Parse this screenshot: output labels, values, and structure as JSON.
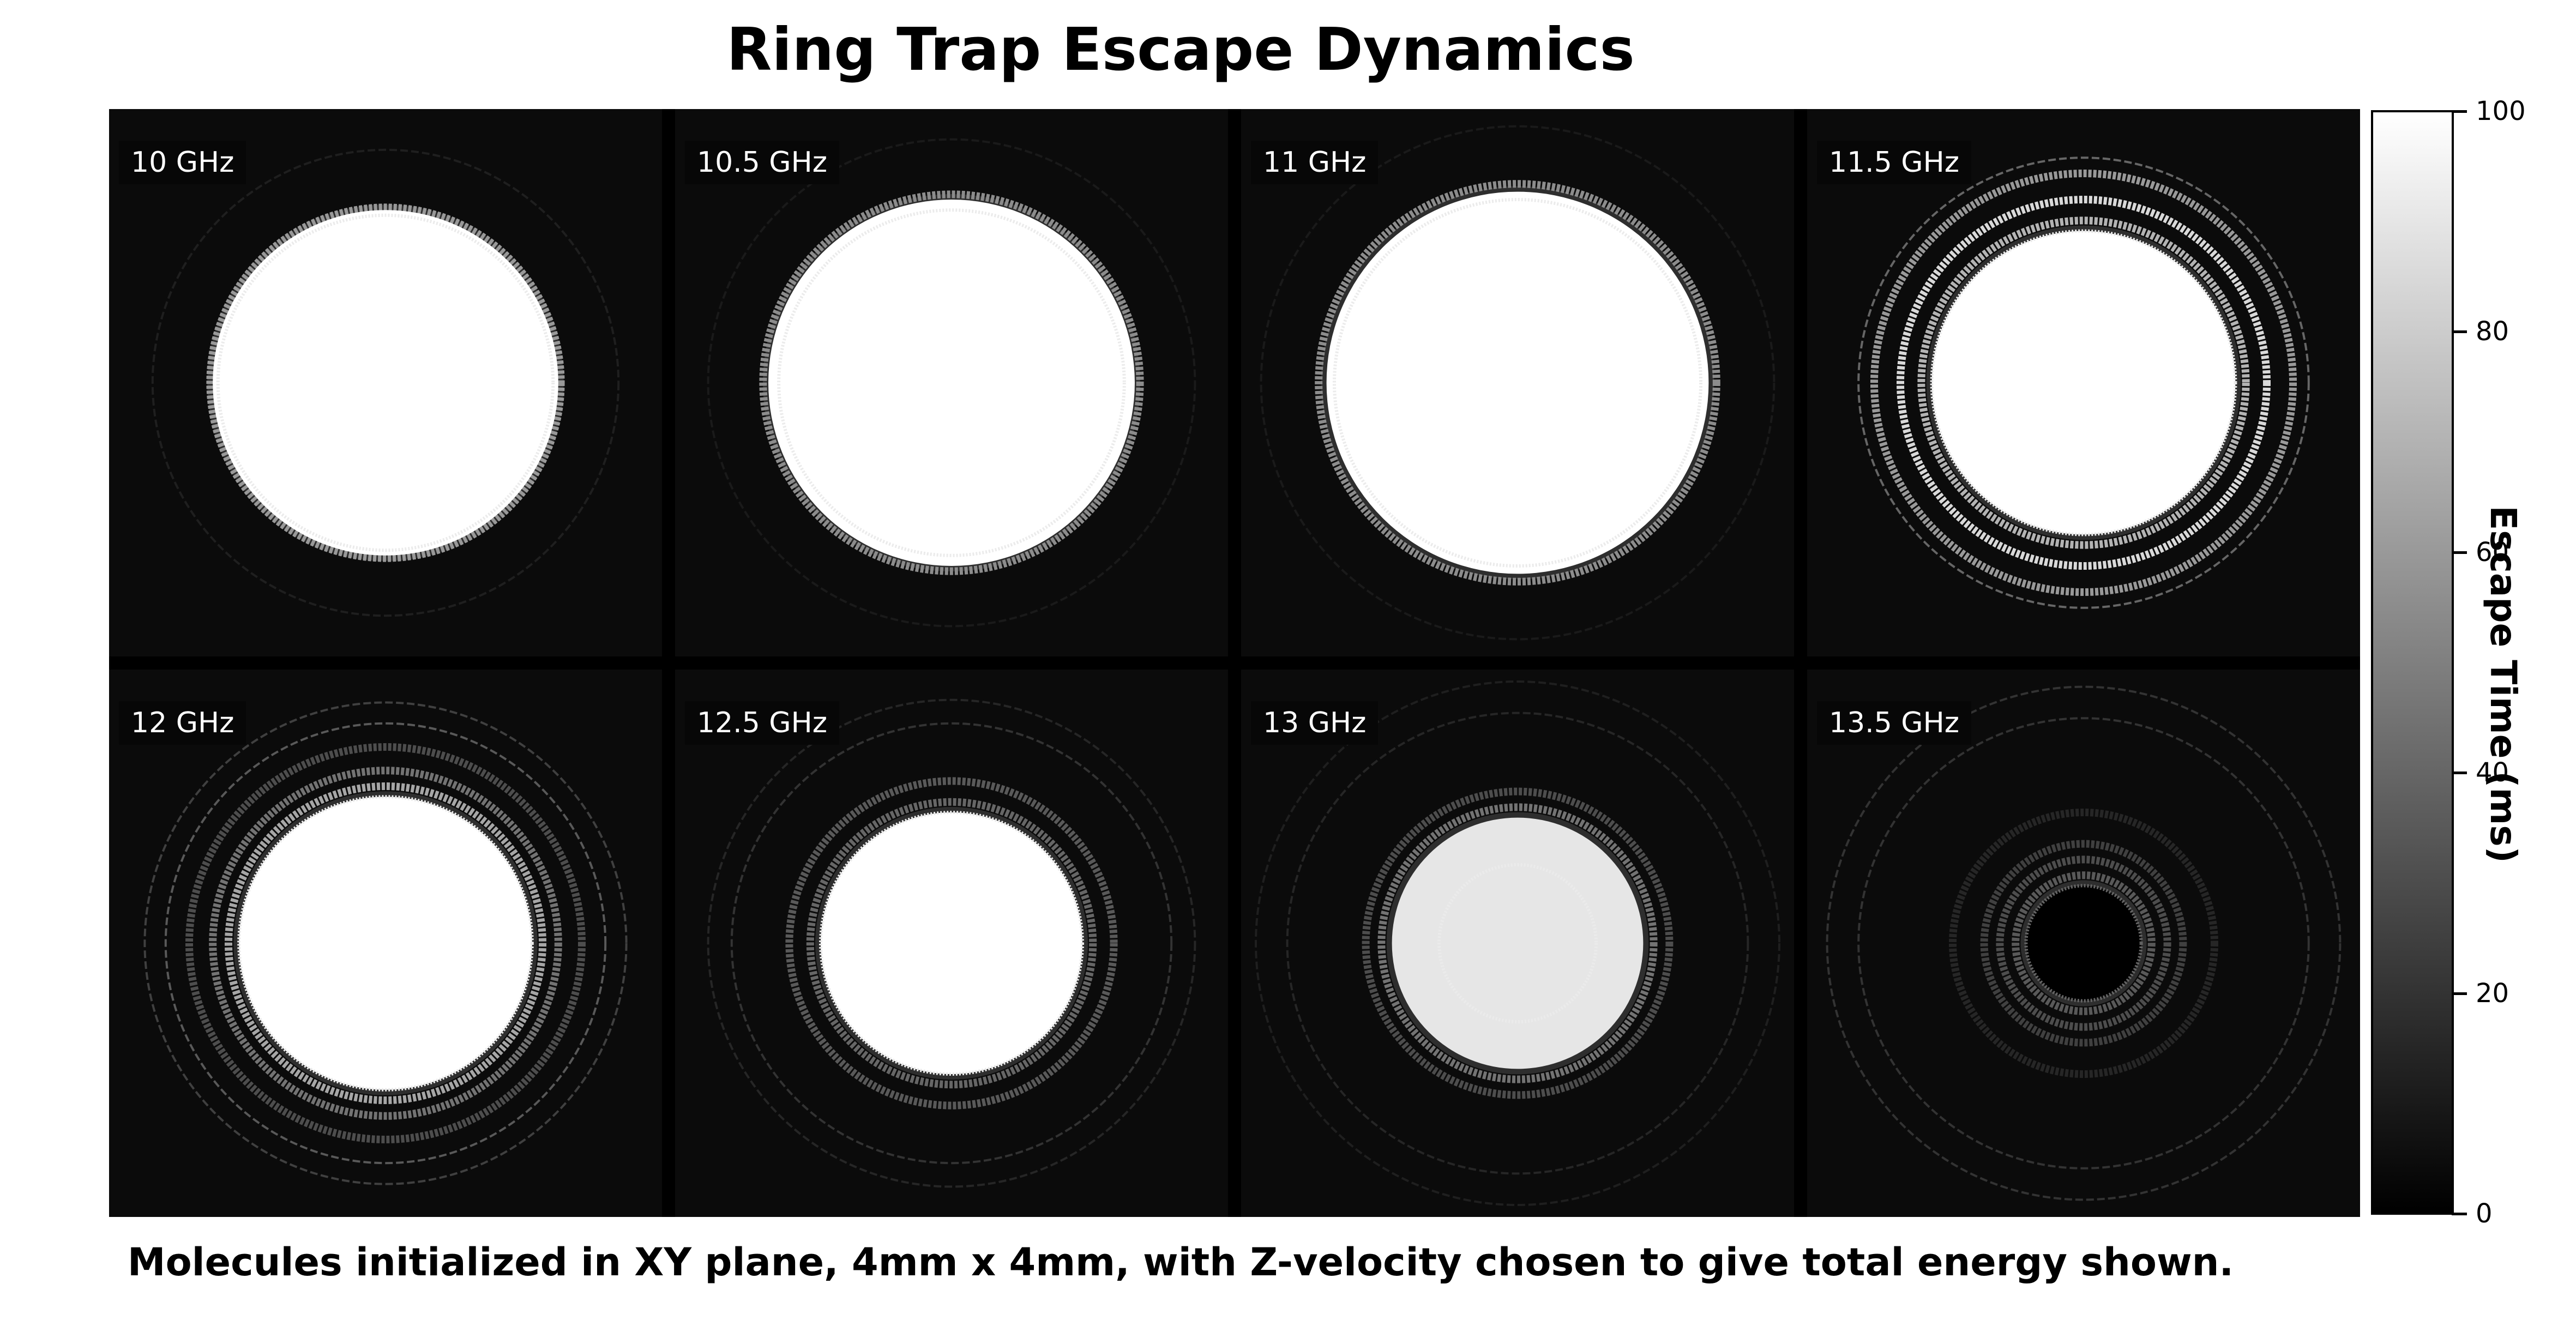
{
  "chart_data": {
    "type": "heatmap",
    "title": "Ring Trap Escape Dynamics",
    "caption": "Molecules initialized in XY plane, 4mm x 4mm, with Z-velocity chosen to give total energy shown.",
    "grid": {
      "rows": 2,
      "cols": 4
    },
    "panels": [
      {
        "label": "10 GHz",
        "core_fill": 100,
        "core_radius": 0.66,
        "band_inner": 0.64,
        "bands": [
          {
            "r": 0.67,
            "level": 60
          },
          {
            "r": 0.89,
            "level": 12
          }
        ]
      },
      {
        "label": "10.5 GHz",
        "core_fill": 100,
        "core_radius": 0.7,
        "band_inner": 0.66,
        "bands": [
          {
            "r": 0.72,
            "level": 55
          },
          {
            "r": 0.93,
            "level": 10
          }
        ]
      },
      {
        "label": "11 GHz",
        "core_fill": 100,
        "core_radius": 0.73,
        "band_inner": 0.7,
        "bands": [
          {
            "r": 0.76,
            "level": 55
          },
          {
            "r": 0.98,
            "level": 10
          }
        ]
      },
      {
        "label": "11.5 GHz",
        "core_fill": 100,
        "core_radius": 0.58,
        "band_inner": 0.58,
        "bands": [
          {
            "r": 0.62,
            "level": 70
          },
          {
            "r": 0.7,
            "level": 85
          },
          {
            "r": 0.8,
            "level": 60
          },
          {
            "r": 0.86,
            "level": 40
          }
        ]
      },
      {
        "label": "12 GHz",
        "core_fill": 100,
        "core_radius": 0.56,
        "band_inner": 0.56,
        "bands": [
          {
            "r": 0.6,
            "level": 65
          },
          {
            "r": 0.66,
            "level": 45
          },
          {
            "r": 0.75,
            "level": 30
          },
          {
            "r": 0.84,
            "level": 35
          },
          {
            "r": 0.92,
            "level": 25
          }
        ]
      },
      {
        "label": "12.5 GHz",
        "core_fill": 100,
        "core_radius": 0.5,
        "band_inner": 0.5,
        "bands": [
          {
            "r": 0.54,
            "level": 40
          },
          {
            "r": 0.62,
            "level": 35
          },
          {
            "r": 0.84,
            "level": 20
          },
          {
            "r": 0.93,
            "level": 15
          }
        ]
      },
      {
        "label": "13 GHz",
        "core_fill": 90,
        "core_radius": 0.48,
        "band_inner": 0.3,
        "bands": [
          {
            "r": 0.52,
            "level": 45
          },
          {
            "r": 0.58,
            "level": 30
          },
          {
            "r": 0.88,
            "level": 15
          },
          {
            "r": 1.0,
            "level": 12
          }
        ]
      },
      {
        "label": "13.5 GHz",
        "core_fill": 0,
        "core_radius": 0.22,
        "band_inner": 0.22,
        "bands": [
          {
            "r": 0.26,
            "level": 35
          },
          {
            "r": 0.32,
            "level": 30
          },
          {
            "r": 0.38,
            "level": 25
          },
          {
            "r": 0.5,
            "level": 15
          },
          {
            "r": 0.86,
            "level": 20
          },
          {
            "r": 0.98,
            "level": 20
          }
        ]
      }
    ],
    "colorbar": {
      "label": "Escape Time (ms)",
      "range": [
        0,
        100
      ],
      "ticks": [
        {
          "value": 0,
          "label": "0"
        },
        {
          "value": 20,
          "label": "20"
        },
        {
          "value": 40,
          "label": "40"
        },
        {
          "value": 60,
          "label": "60"
        },
        {
          "value": 80,
          "label": "80"
        },
        {
          "value": 100,
          "label": "100"
        }
      ],
      "colors": [
        "#000000",
        "#ffffff"
      ]
    }
  }
}
